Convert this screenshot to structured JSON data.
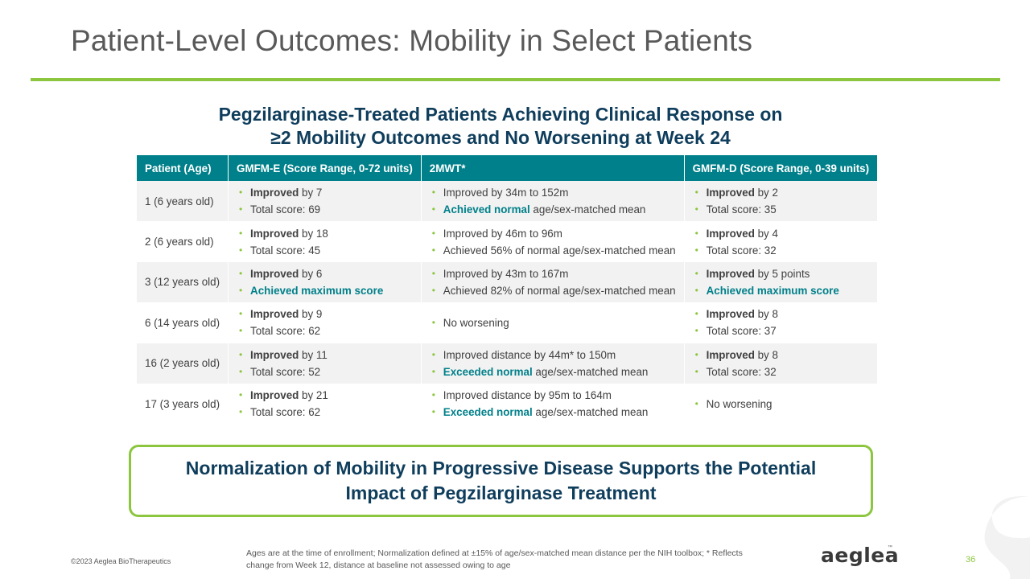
{
  "title": "Patient-Level Outcomes: Mobility in Select Patients",
  "subtitle": {
    "line1": "Pegzilarginase-Treated Patients Achieving Clinical Response on",
    "line2": "≥2 Mobility Outcomes and No Worsening at Week 24"
  },
  "table": {
    "headers": [
      "Patient (Age)",
      "GMFM-E (Score Range, 0-72 units)",
      "2MWT*",
      "GMFM-D (Score Range, 0-39 units)"
    ],
    "rows": [
      {
        "patient": "1 (6 years old)",
        "gmfm_e": [
          {
            "bold": "Improved",
            "rest": " by 7"
          },
          {
            "bold": "",
            "rest": "Total score: 69"
          }
        ],
        "mwt": [
          {
            "bold": "",
            "rest": "Improved by 34m to 152m"
          },
          {
            "bold": "Achieved normal",
            "rest": " age/sex-matched mean",
            "teal": true
          }
        ],
        "gmfm_d": [
          {
            "bold": "Improved",
            "rest": " by 2"
          },
          {
            "bold": "",
            "rest": "Total score: 35"
          }
        ]
      },
      {
        "patient": "2 (6 years old)",
        "gmfm_e": [
          {
            "bold": "Improved",
            "rest": " by 18"
          },
          {
            "bold": "",
            "rest": "Total score: 45"
          }
        ],
        "mwt": [
          {
            "bold": "",
            "rest": "Improved by 46m to 96m"
          },
          {
            "bold": "",
            "rest": "Achieved 56% of normal age/sex-matched mean"
          }
        ],
        "gmfm_d": [
          {
            "bold": "Improved",
            "rest": " by 4"
          },
          {
            "bold": "",
            "rest": "Total score: 32"
          }
        ]
      },
      {
        "patient": "3 (12 years old)",
        "gmfm_e": [
          {
            "bold": "Improved",
            "rest": " by 6"
          },
          {
            "bold": "Achieved maximum score",
            "rest": "",
            "teal": true
          }
        ],
        "mwt": [
          {
            "bold": "",
            "rest": "Improved by 43m to 167m"
          },
          {
            "bold": "",
            "rest": "Achieved 82% of normal age/sex-matched mean"
          }
        ],
        "gmfm_d": [
          {
            "bold": "Improved",
            "rest": " by 5 points"
          },
          {
            "bold": "Achieved maximum score",
            "rest": "",
            "teal": true
          }
        ]
      },
      {
        "patient": "6 (14 years old)",
        "gmfm_e": [
          {
            "bold": "Improved",
            "rest": " by 9"
          },
          {
            "bold": "",
            "rest": "Total score: 62"
          }
        ],
        "mwt": [
          {
            "bold": "",
            "rest": "No worsening"
          }
        ],
        "gmfm_d": [
          {
            "bold": "Improved",
            "rest": " by 8"
          },
          {
            "bold": "",
            "rest": "Total score: 37"
          }
        ]
      },
      {
        "patient": "16 (2 years old)",
        "gmfm_e": [
          {
            "bold": "Improved",
            "rest": " by 11"
          },
          {
            "bold": "",
            "rest": "Total score: 52"
          }
        ],
        "mwt": [
          {
            "bold": "",
            "rest": "Improved distance by 44m* to 150m"
          },
          {
            "bold": "Exceeded normal",
            "rest": " age/sex-matched mean",
            "teal": true
          }
        ],
        "gmfm_d": [
          {
            "bold": "Improved",
            "rest": " by 8"
          },
          {
            "bold": "",
            "rest": "Total score: 32"
          }
        ]
      },
      {
        "patient": "17 (3 years old)",
        "gmfm_e": [
          {
            "bold": "Improved",
            "rest": " by 21"
          },
          {
            "bold": "",
            "rest": "Total score: 62"
          }
        ],
        "mwt": [
          {
            "bold": "",
            "rest": "Improved distance by 95m to 164m"
          },
          {
            "bold": "Exceeded normal",
            "rest": " age/sex-matched mean",
            "teal": true
          }
        ],
        "gmfm_d": [
          {
            "bold": "",
            "rest": "No worsening"
          }
        ]
      }
    ]
  },
  "callout": "Normalization of Mobility in Progressive Disease Supports the Potential Impact of Pegzilarginase Treatment",
  "footer": {
    "copyright": "©2023 Aeglea BioTherapeutics",
    "footnote": "Ages are at the time of enrollment; Normalization defined at ±15% of age/sex-matched mean distance per the NIH toolbox; * Reflects change from Week 12, distance at baseline not assessed owing to age",
    "logo_text": "aeglea",
    "logo_tm": "™",
    "page_number": "36"
  },
  "colors": {
    "accent_green": "#8cc63f",
    "header_teal": "#00808a",
    "heading_navy": "#0f3d5c"
  }
}
